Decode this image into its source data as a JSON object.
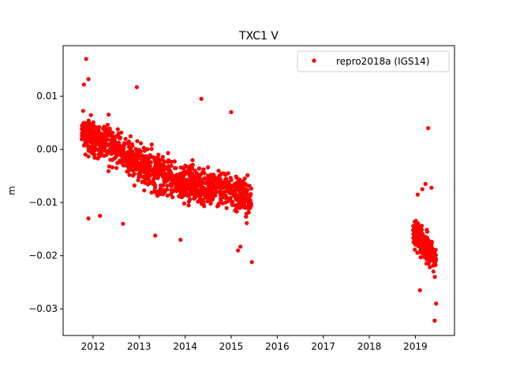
{
  "chart_data": {
    "type": "scatter",
    "title": "TXC1 V",
    "xlabel": "",
    "ylabel": "m",
    "xlim": [
      2011.35,
      2019.85
    ],
    "ylim": [
      -0.035,
      0.0195
    ],
    "x_ticks": [
      2012,
      2013,
      2014,
      2015,
      2016,
      2017,
      2018,
      2019
    ],
    "y_ticks": [
      0.01,
      0.0,
      -0.01,
      -0.02,
      -0.03
    ],
    "y_tick_labels": [
      "0.01",
      "0.00",
      "−0.01",
      "−0.02",
      "−0.03"
    ],
    "x_tick_labels": [
      "2012",
      "2013",
      "2014",
      "2015",
      "2016",
      "2017",
      "2018",
      "2019"
    ],
    "grid": false,
    "legend_position": "top-right",
    "series": [
      {
        "name": "repro2018a (IGS14)",
        "color": "#ff0000",
        "marker": "circle",
        "segments": [
          {
            "x_start": 2011.75,
            "x_end": 2015.45,
            "trend": [
              [
                2011.75,
                0.003
              ],
              [
                2012.5,
                0.0005
              ],
              [
                2013.0,
                -0.003
              ],
              [
                2014.0,
                -0.0065
              ],
              [
                2015.0,
                -0.0075
              ],
              [
                2015.45,
                -0.0095
              ]
            ],
            "spread": 0.005,
            "n_points": 1200,
            "outliers": [
              [
                2011.85,
                0.017
              ],
              [
                2011.8,
                0.0122
              ],
              [
                2011.9,
                0.0132
              ],
              [
                2012.95,
                0.0117
              ],
              [
                2014.35,
                0.0095
              ],
              [
                2015.0,
                0.007
              ],
              [
                2015.45,
                -0.0212
              ],
              [
                2015.15,
                -0.019
              ],
              [
                2015.2,
                -0.0183
              ],
              [
                2013.35,
                -0.0162
              ],
              [
                2013.9,
                -0.017
              ],
              [
                2011.9,
                -0.013
              ],
              [
                2012.15,
                -0.0125
              ],
              [
                2012.65,
                -0.014
              ]
            ]
          },
          {
            "x_start": 2018.95,
            "x_end": 2019.45,
            "trend": [
              [
                2018.95,
                -0.015
              ],
              [
                2019.2,
                -0.018
              ],
              [
                2019.45,
                -0.021
              ]
            ],
            "spread": 0.0045,
            "n_points": 220,
            "outliers": [
              [
                2019.28,
                0.004
              ],
              [
                2019.42,
                -0.0322
              ],
              [
                2019.45,
                -0.029
              ],
              [
                2019.1,
                -0.0265
              ],
              [
                2019.15,
                -0.0075
              ],
              [
                2019.22,
                -0.0065
              ],
              [
                2019.35,
                -0.0072
              ],
              [
                2019.05,
                -0.0085
              ]
            ]
          }
        ]
      }
    ]
  }
}
